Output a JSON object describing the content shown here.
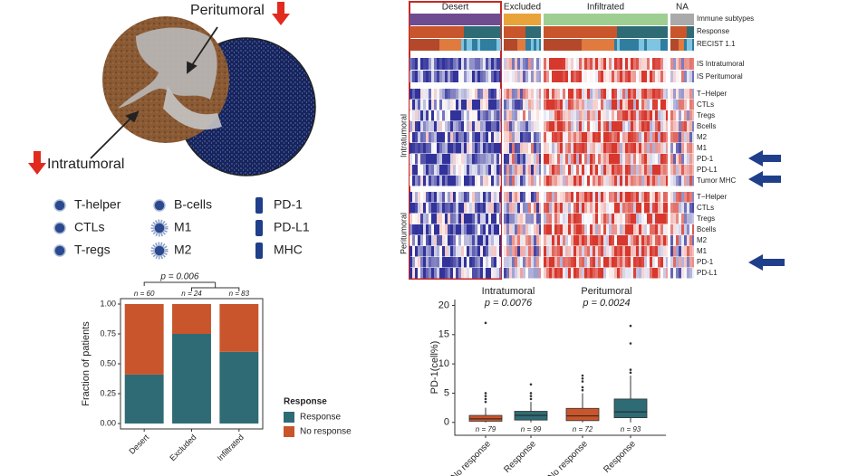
{
  "illustration": {
    "peritumoral": "Peritumoral",
    "intratumoral": "Intratumoral",
    "legend": [
      "T-helper",
      "CTLs",
      "T-regs",
      "B-cells",
      "M1",
      "M2",
      "PD-1",
      "PD-L1",
      "MHC"
    ]
  },
  "heatmap": {
    "groups": [
      "Desert",
      "Excluded",
      "Infiltrated",
      "NA"
    ],
    "annotation_rows": [
      "Immune subtypes",
      "Response",
      "RECIST 1.1"
    ],
    "score_rows": [
      "IS Intratumoral",
      "IS Peritumoral"
    ],
    "sections": [
      {
        "label": "Intratumoral",
        "rows": [
          "T−Helper",
          "CTLs",
          "Tregs",
          "Bcells",
          "M2",
          "M1",
          "PD-1",
          "PD-L1",
          "Tumor MHC"
        ]
      },
      {
        "label": "Peritumoral",
        "rows": [
          "T−Helper",
          "CTLs",
          "Tregs",
          "Bcells",
          "M2",
          "M1",
          "PD-1",
          "PD-L1"
        ]
      }
    ]
  },
  "chart_data": [
    {
      "type": "bar",
      "stacked": true,
      "y_label": "Fraction of patients",
      "categories": [
        "Desert",
        "Excluded",
        "Infiltrated"
      ],
      "category_notes": [
        "n = 60",
        "n = 24",
        "n = 83"
      ],
      "series": [
        {
          "name": "Response",
          "color": "#2f6b75",
          "values": [
            0.41,
            0.75,
            0.6
          ]
        },
        {
          "name": "No response",
          "color": "#c8552b",
          "values": [
            0.59,
            0.25,
            0.4
          ]
        }
      ],
      "legend_title": "Response",
      "annotation": "p = 0.006",
      "ylim": [
        0,
        1
      ],
      "yticks": [
        {
          "value": 0,
          "label": "0.00"
        },
        {
          "value": 0.25,
          "label": "0.25"
        },
        {
          "value": 0.5,
          "label": "0.50"
        },
        {
          "value": 0.75,
          "label": "0.75"
        },
        {
          "value": 1,
          "label": "1.00"
        }
      ]
    },
    {
      "type": "box",
      "y_label": "PD-1(cell%)",
      "groups": [
        {
          "title": "Intratumoral",
          "p": "p = 0.0076"
        },
        {
          "title": "Peritumoral",
          "p": "p = 0.0024"
        }
      ],
      "categories": [
        "No response",
        "Response",
        "No response",
        "Response"
      ],
      "category_notes": [
        "n = 79",
        "n = 99",
        "n = 72",
        "n = 93"
      ],
      "colors": [
        "#c8552b",
        "#2f6b75",
        "#c8552b",
        "#2f6b75"
      ],
      "boxes": [
        {
          "whislo": 0,
          "q1": 0.2,
          "median": 0.6,
          "q3": 1.2,
          "whishi": 2.5,
          "outliers": [
            3.5,
            4,
            4.5,
            5,
            17
          ]
        },
        {
          "whislo": 0,
          "q1": 0.4,
          "median": 1.2,
          "q3": 1.9,
          "whishi": 3.5,
          "outliers": [
            4,
            4.5,
            5,
            6.5
          ]
        },
        {
          "whislo": 0,
          "q1": 0.3,
          "median": 1.1,
          "q3": 2.4,
          "whishi": 5,
          "outliers": [
            5.5,
            6,
            7,
            7.5,
            8
          ]
        },
        {
          "whislo": 0,
          "q1": 0.8,
          "median": 1.8,
          "q3": 4,
          "whishi": 8,
          "outliers": [
            8.5,
            9,
            13.5,
            16.5
          ]
        }
      ],
      "ylim": [
        -2.2,
        21
      ],
      "yticks": [
        0,
        5,
        10,
        15,
        20
      ]
    }
  ]
}
